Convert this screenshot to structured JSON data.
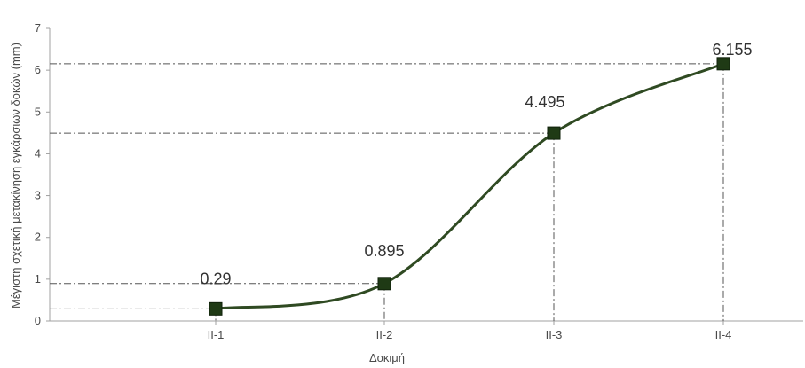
{
  "chart_data": {
    "type": "line",
    "categories": [
      "II-1",
      "II-2",
      "II-3",
      "II-4"
    ],
    "series": [
      {
        "values": [
          0.29,
          0.895,
          4.495,
          6.155
        ]
      }
    ],
    "data_labels": [
      "0.29",
      "0.895",
      "4.495",
      "6.155"
    ],
    "xlabel": "Δοκιμή",
    "ylabel": "Μέγιστη σχετική μετακίνηση εγκάρσιων δοκών (mm)",
    "ylim": [
      0,
      7
    ],
    "yticks": [
      "0",
      "1",
      "2",
      "3",
      "4",
      "5",
      "6",
      "7"
    ],
    "grid": false,
    "legend": "none",
    "smooth": true,
    "reference_lines": "dash-dot guides from axes to each point",
    "colors": {
      "line": "#2f4a22",
      "marker": "#1f3a15",
      "axis": "#a0a0a0",
      "guide": "#555555"
    }
  }
}
